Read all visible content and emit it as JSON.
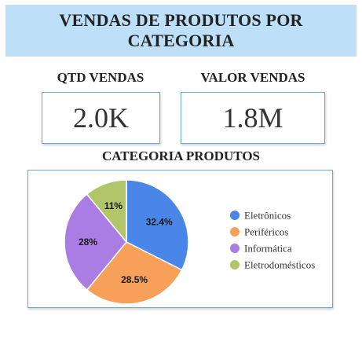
{
  "header": {
    "title_line1": "VENDAS DE PRODUTOS POR",
    "title_line2": "CATEGORIA"
  },
  "kpis": [
    {
      "label": "QTD VENDAS",
      "value": "2.0K"
    },
    {
      "label": "VALOR VENDAS",
      "value": "1.8M"
    }
  ],
  "chart_section": {
    "title": "CATEGORIA PRODUTOS"
  },
  "chart_data": {
    "type": "pie",
    "title": "CATEGORIA PRODUTOS",
    "legend_position": "right",
    "slices": [
      {
        "label": "Eletrônicos",
        "value": 32.4,
        "display": "32.4%",
        "color": "#4a86e8"
      },
      {
        "label": "Periféricos",
        "value": 28.5,
        "display": "28.5%",
        "color": "#f6a05a"
      },
      {
        "label": "Informática",
        "value": 28,
        "display": "28%",
        "color": "#a97de3"
      },
      {
        "label": "Eletrodomésticos",
        "value": 11,
        "display": "11%",
        "color": "#b2c56a"
      }
    ]
  }
}
